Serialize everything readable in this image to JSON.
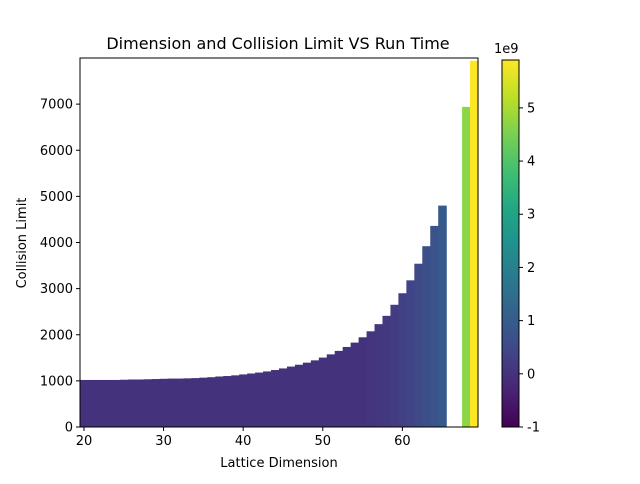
{
  "chart_data": {
    "type": "bar",
    "title": "Dimension and Collision Limit VS Run Time",
    "xlabel": "Lattice Dimension",
    "ylabel": "Collision Limit",
    "xlim": [
      19.5,
      69.5
    ],
    "ylim": [
      0,
      8000
    ],
    "xticks": [
      "20",
      "30",
      "40",
      "50",
      "60"
    ],
    "yticks": [
      "0",
      "1000",
      "2000",
      "3000",
      "4000",
      "5000",
      "6000",
      "7000"
    ],
    "x": [
      20,
      21,
      22,
      23,
      24,
      25,
      26,
      27,
      28,
      29,
      30,
      31,
      32,
      33,
      34,
      35,
      36,
      37,
      38,
      39,
      40,
      41,
      42,
      43,
      44,
      45,
      46,
      47,
      48,
      49,
      50,
      51,
      52,
      53,
      54,
      55,
      56,
      57,
      58,
      59,
      60,
      61,
      62,
      63,
      64,
      65,
      68,
      69
    ],
    "values": [
      1020,
      1020,
      1020,
      1020,
      1020,
      1025,
      1030,
      1030,
      1035,
      1040,
      1045,
      1050,
      1050,
      1055,
      1060,
      1070,
      1080,
      1095,
      1105,
      1120,
      1140,
      1160,
      1180,
      1205,
      1235,
      1270,
      1310,
      1350,
      1395,
      1445,
      1505,
      1575,
      1650,
      1735,
      1830,
      1945,
      2075,
      2230,
      2410,
      2650,
      2900,
      3180,
      3540,
      3920,
      4360,
      4800,
      6940,
      7940
    ],
    "run_time": [
      0.0,
      0.0,
      0.0,
      0.0,
      0.0,
      0.0,
      0.0,
      0.0,
      0.0,
      0.0,
      0.0,
      0.0,
      0.0,
      0.0,
      0.0,
      0.0,
      0.0,
      0.0,
      0.0,
      0.0,
      0.0,
      0.0,
      0.0,
      0.0,
      0.0,
      0.0,
      0.0,
      0.0,
      0.0,
      0.0,
      0.0,
      0.0,
      0.0,
      0.0,
      0.0,
      0.0,
      0.05,
      0.1,
      0.15,
      0.2,
      0.3,
      0.4,
      0.5,
      0.65,
      0.8,
      0.95,
      4.7,
      5.9
    ],
    "colorbar": {
      "colormap": "viridis",
      "range": [
        -1,
        5.9
      ],
      "ticks": [
        "-1",
        "0",
        "1",
        "2",
        "3",
        "4",
        "5"
      ],
      "tick_values": [
        -1,
        0,
        1,
        2,
        3,
        4,
        5
      ],
      "offset_label": "1e9"
    },
    "grid": false
  }
}
